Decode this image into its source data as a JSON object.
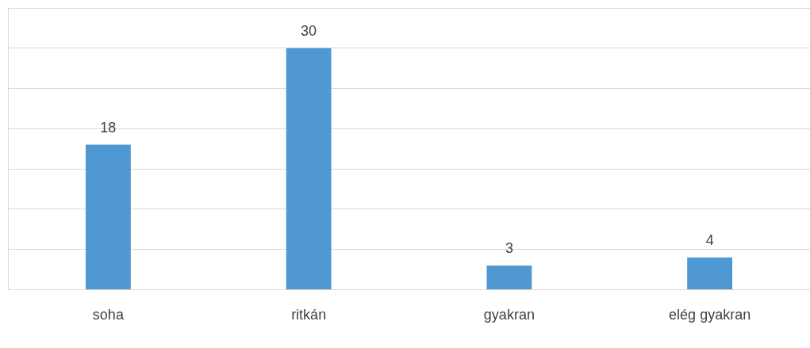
{
  "chart_data": {
    "type": "bar",
    "categories": [
      "soha",
      "ritkán",
      "gyakran",
      "elég gyakran"
    ],
    "values": [
      18,
      30,
      3,
      4
    ],
    "color": "#5098d2",
    "grid": "y",
    "data_labels": true,
    "legend": false,
    "tick_labels": "x"
  }
}
